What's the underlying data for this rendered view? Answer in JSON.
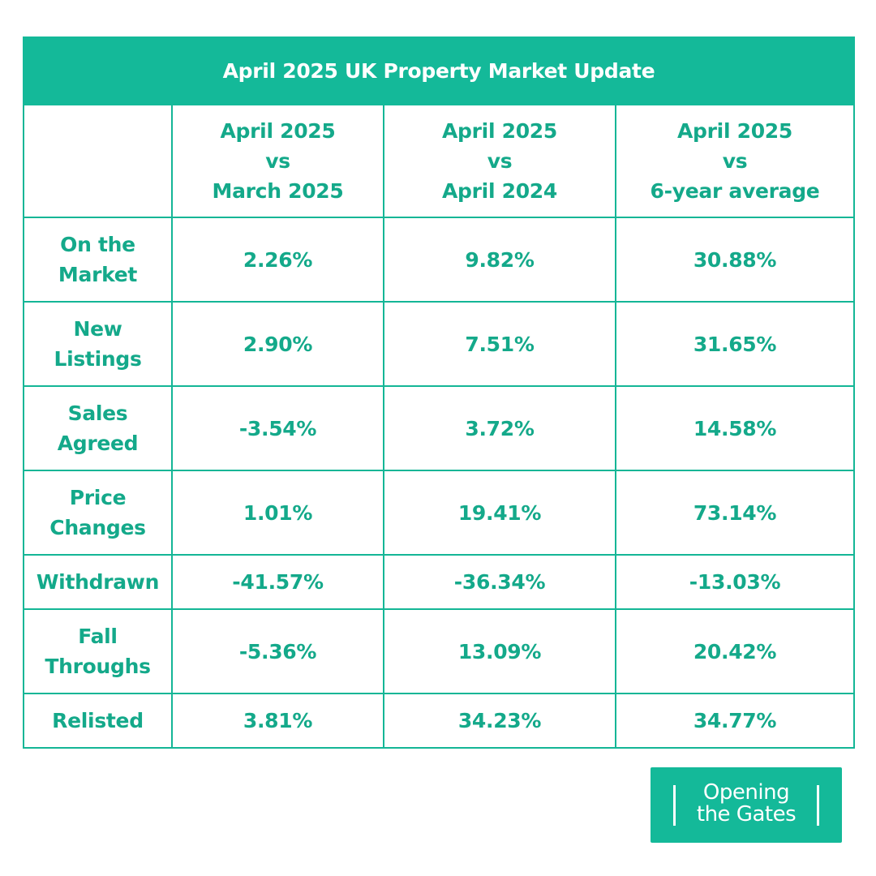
{
  "title": "April 2025 UK Property Market Update",
  "columns": [
    {
      "line1": "April 2025",
      "line2": "vs",
      "line3": "March 2025"
    },
    {
      "line1": "April 2025",
      "line2": "vs",
      "line3": "April 2024"
    },
    {
      "line1": "April 2025",
      "line2": "vs",
      "line3": "6-year average"
    }
  ],
  "rows": [
    {
      "label_line1": "On the",
      "label_line2": "Market",
      "values": [
        "2.26%",
        "9.82%",
        "30.88%"
      ]
    },
    {
      "label_line1": "New",
      "label_line2": "Listings",
      "values": [
        "2.90%",
        "7.51%",
        "31.65%"
      ]
    },
    {
      "label_line1": "Sales",
      "label_line2": "Agreed",
      "values": [
        "-3.54%",
        "3.72%",
        "14.58%"
      ]
    },
    {
      "label_line1": "Price",
      "label_line2": "Changes",
      "values": [
        "1.01%",
        "19.41%",
        "73.14%"
      ]
    },
    {
      "label_line1": "Withdrawn",
      "label_line2": "",
      "values": [
        "-41.57%",
        "-36.34%",
        "-13.03%"
      ]
    },
    {
      "label_line1": "Fall",
      "label_line2": "Throughs",
      "values": [
        "-5.36%",
        "13.09%",
        "20.42%"
      ]
    },
    {
      "label_line1": "Relisted",
      "label_line2": "",
      "values": [
        "3.81%",
        "34.23%",
        "34.77%"
      ]
    }
  ],
  "logo": {
    "line1": "Opening",
    "line2": "the Gates"
  },
  "colors": {
    "accent": "#14b999",
    "text": "#14a98a",
    "background": "#ffffff"
  }
}
